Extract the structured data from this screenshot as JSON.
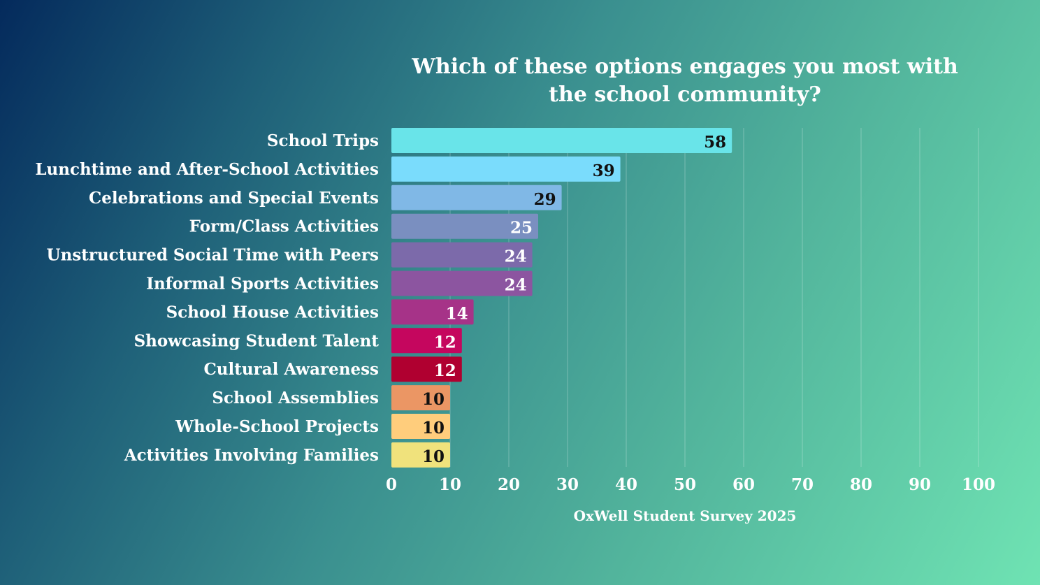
{
  "chart_data": {
    "type": "bar",
    "orientation": "horizontal",
    "title": "Which of these options engages you most with the school community?",
    "source": "OxWell Student Survey 2025",
    "xlim": [
      0,
      100
    ],
    "xticks": [
      0,
      10,
      20,
      30,
      40,
      50,
      60,
      70,
      80,
      90,
      100
    ],
    "grid": true,
    "categories": [
      "School Trips",
      "Lunchtime and After-School Activities",
      "Celebrations and Special Events",
      "Form/Class Activities",
      "Unstructured Social Time with Peers",
      "Informal Sports Activities",
      "School House Activities",
      "Showcasing Student Talent",
      "Cultural Awareness",
      "School Assemblies",
      "Whole-School Projects",
      "Activities Involving Families"
    ],
    "values": [
      58,
      39,
      29,
      25,
      24,
      24,
      14,
      12,
      12,
      10,
      10,
      10
    ],
    "bar_colors": [
      "#69e4e9",
      "#7adcfc",
      "#80b8e6",
      "#7a8fc0",
      "#7c6aaa",
      "#8c55a0",
      "#a63388",
      "#c5065e",
      "#b00030",
      "#eb9664",
      "#ffcd7c",
      "#f0e27c"
    ],
    "label_colors": [
      "#111111",
      "#111111",
      "#111111",
      "#ffffff",
      "#ffffff",
      "#ffffff",
      "#ffffff",
      "#ffffff",
      "#ffffff",
      "#111111",
      "#111111",
      "#111111"
    ]
  }
}
